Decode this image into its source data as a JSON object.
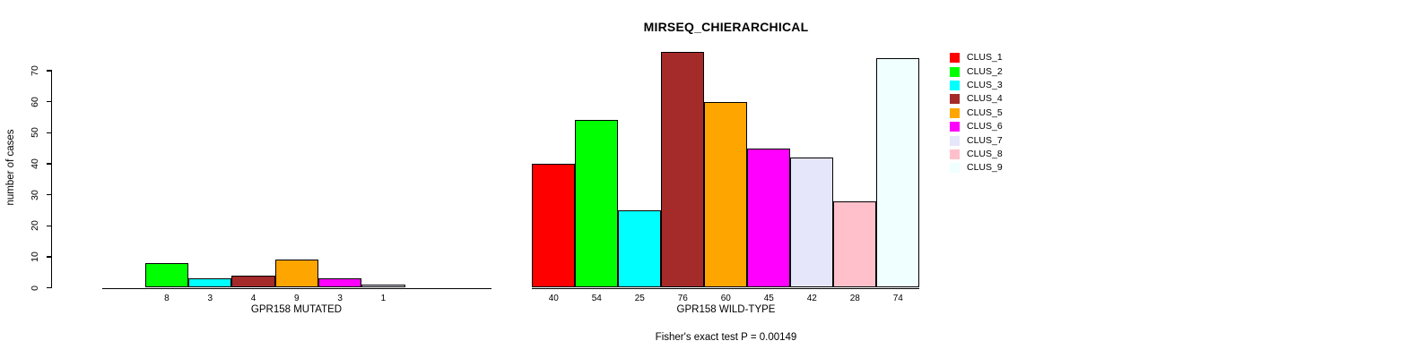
{
  "title": "MIRSEQ_CHIERARCHICAL",
  "y_axis": {
    "label": "number of cases",
    "ticks": [
      0,
      10,
      20,
      30,
      40,
      50,
      60,
      70
    ]
  },
  "chart_data": [
    {
      "type": "bar",
      "panel": "left",
      "xlabel": "GPR158 MUTATED",
      "ylabel": "number of cases",
      "ylim": [
        0,
        70
      ],
      "grid": false,
      "categories": [
        "CLUS_1",
        "CLUS_2",
        "CLUS_3",
        "CLUS_4",
        "CLUS_5",
        "CLUS_6",
        "CLUS_7",
        "CLUS_8",
        "CLUS_9"
      ],
      "values": [
        0,
        8,
        3,
        4,
        9,
        3,
        1,
        0,
        0
      ],
      "bar_labels": [
        "",
        "8",
        "3",
        "4",
        "9",
        "3",
        "1",
        "",
        ""
      ]
    },
    {
      "type": "bar",
      "panel": "right",
      "xlabel": "GPR158 WILD-TYPE",
      "ylabel": "number of cases",
      "ylim": [
        0,
        70
      ],
      "grid": false,
      "categories": [
        "CLUS_1",
        "CLUS_2",
        "CLUS_3",
        "CLUS_4",
        "CLUS_5",
        "CLUS_6",
        "CLUS_7",
        "CLUS_8",
        "CLUS_9"
      ],
      "values": [
        40,
        54,
        25,
        76,
        60,
        45,
        42,
        28,
        74
      ],
      "bar_labels": [
        "40",
        "54",
        "25",
        "76",
        "60",
        "45",
        "42",
        "28",
        "74"
      ]
    }
  ],
  "legend": {
    "position": "right",
    "entries": [
      {
        "label": "CLUS_1",
        "color": "#FF0000"
      },
      {
        "label": "CLUS_2",
        "color": "#00FF00"
      },
      {
        "label": "CLUS_3",
        "color": "#00FFFF"
      },
      {
        "label": "CLUS_4",
        "color": "#A52A2A"
      },
      {
        "label": "CLUS_5",
        "color": "#FFA500"
      },
      {
        "label": "CLUS_6",
        "color": "#FF00FF"
      },
      {
        "label": "CLUS_7",
        "color": "#E6E6FA"
      },
      {
        "label": "CLUS_8",
        "color": "#FFC0CB"
      },
      {
        "label": "CLUS_9",
        "color": "#F0FFFF"
      }
    ]
  },
  "footer": {
    "stat_text": "Fisher's exact test P = 0.00149"
  }
}
